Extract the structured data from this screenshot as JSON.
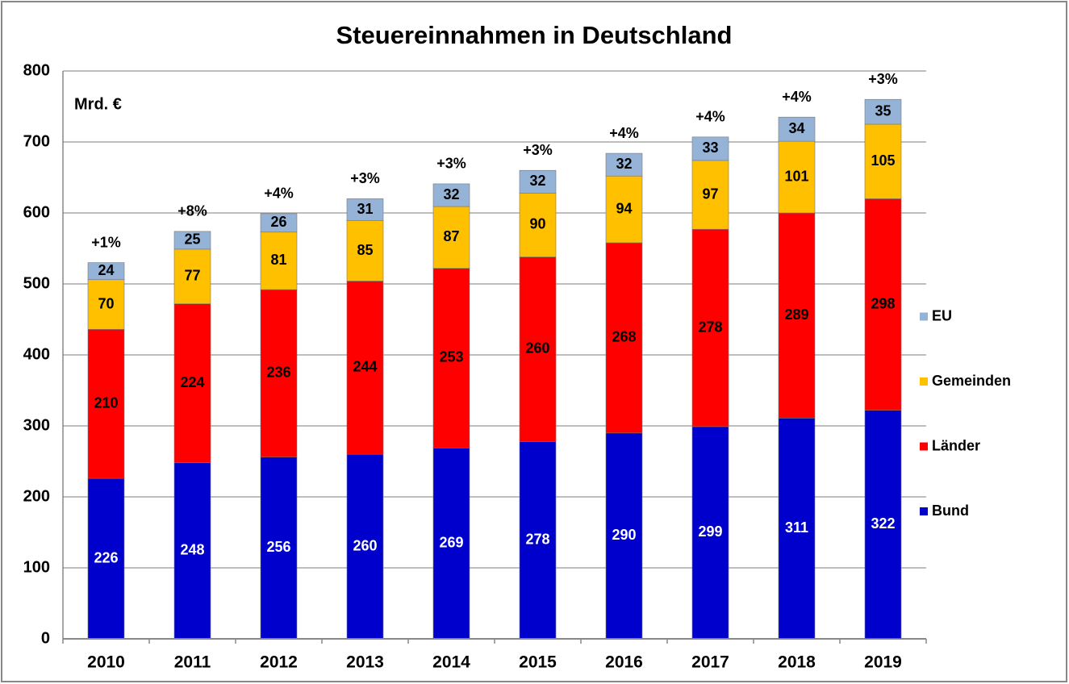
{
  "chart_data": {
    "type": "stacked_bar",
    "title": "Steuereinnahmen in Deutschland",
    "y_label": "Mrd. €",
    "categories": [
      "2010",
      "2011",
      "2012",
      "2013",
      "2014",
      "2015",
      "2016",
      "2017",
      "2018",
      "2019"
    ],
    "series": [
      {
        "name": "Bund",
        "color": "#0000cc",
        "label_color": "#ffffff",
        "values": [
          226,
          248,
          256,
          260,
          269,
          278,
          290,
          299,
          311,
          322
        ]
      },
      {
        "name": "Länder",
        "color": "#ff0000",
        "label_color": "#000000",
        "values": [
          210,
          224,
          236,
          244,
          253,
          260,
          268,
          278,
          289,
          298
        ]
      },
      {
        "name": "Gemeinden",
        "color": "#ffc000",
        "label_color": "#000000",
        "values": [
          70,
          77,
          81,
          85,
          87,
          90,
          94,
          97,
          101,
          105
        ]
      },
      {
        "name": "EU",
        "color": "#95b3d7",
        "label_color": "#000000",
        "values": [
          24,
          25,
          26,
          31,
          32,
          32,
          32,
          33,
          34,
          35
        ]
      }
    ],
    "annotations": [
      "+1%",
      "+8%",
      "+4%",
      "+3%",
      "+3%",
      "+3%",
      "+4%",
      "+4%",
      "+4%",
      "+3%"
    ],
    "ylim": [
      0,
      800
    ],
    "yticks": [
      0,
      100,
      200,
      300,
      400,
      500,
      600,
      700,
      800
    ],
    "grid": true,
    "legend": "right"
  }
}
